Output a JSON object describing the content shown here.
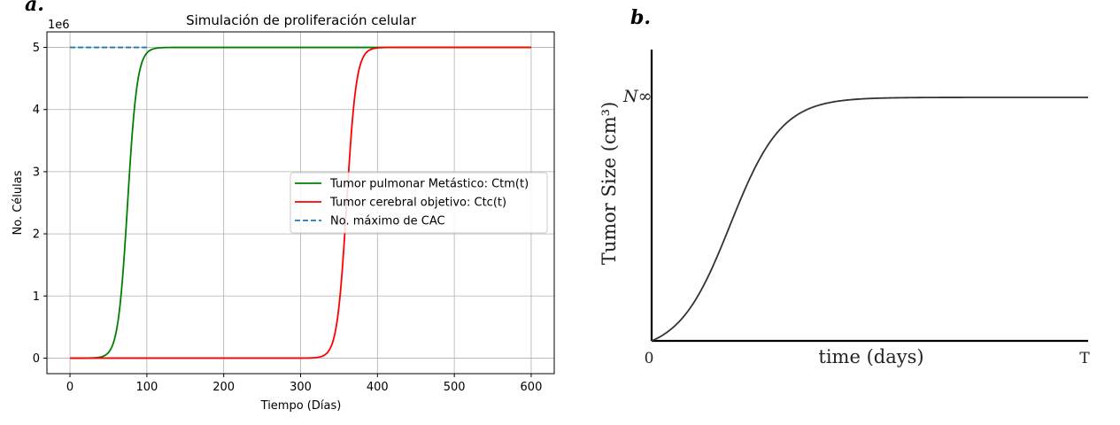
{
  "panel_a_label": "a.",
  "panel_b_label": "b.",
  "chart_data": [
    {
      "type": "line",
      "title": "Simulación de proliferación celular",
      "xlabel": "Tiempo (Días)",
      "ylabel": "No. Células",
      "y_multiplier": "1e6",
      "xlim": [
        -30,
        630
      ],
      "ylim": [
        -0.25,
        5.25
      ],
      "xticks": [
        0,
        100,
        200,
        300,
        400,
        500,
        600
      ],
      "yticks": [
        0,
        1,
        2,
        3,
        4,
        5
      ],
      "grid": true,
      "legend_position": "center-right",
      "series": [
        {
          "name": "Tumor pulmonar Metástico: Ctm(t)",
          "color": "#008000",
          "style": "solid",
          "model": "logistic",
          "carrying_capacity": 5,
          "midpoint": 75,
          "rate": 0.16,
          "x_range": [
            0,
            600
          ]
        },
        {
          "name": "Tumor cerebral objetivo: Ctc(t)",
          "color": "#ff0000",
          "style": "solid",
          "model": "logistic",
          "carrying_capacity": 5,
          "midpoint": 360,
          "rate": 0.16,
          "x_range": [
            0,
            600
          ]
        },
        {
          "name": "No. máximo de CAC",
          "color": "#1f77b4",
          "style": "dashed",
          "x": [
            0,
            100
          ],
          "y": [
            5,
            5
          ]
        }
      ]
    },
    {
      "type": "line",
      "title": "",
      "xlabel": "time (days)",
      "ylabel": "Tumor Size (cm³)",
      "asymptote_label": "N∞",
      "x_start_label": "0",
      "x_end_label": "T",
      "grid": false,
      "series": [
        {
          "color": "#333333",
          "model": "sigmoid",
          "carrying_capacity": 1,
          "midpoint": 0.18,
          "rate": 17,
          "x_range": [
            0,
            1
          ]
        }
      ]
    }
  ]
}
